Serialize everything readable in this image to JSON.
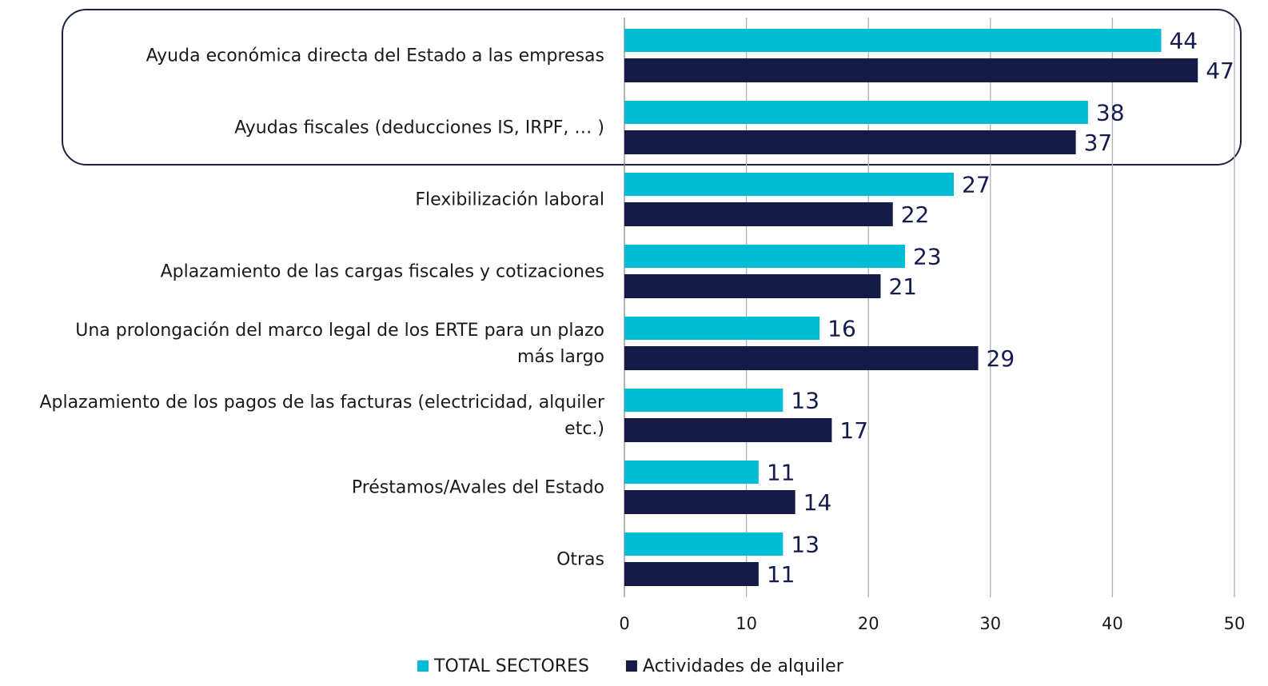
{
  "chart_data": {
    "type": "bar",
    "orientation": "horizontal",
    "categories": [
      "Ayuda económica directa del Estado a las empresas",
      "Ayudas fiscales (deducciones IS, IRPF, … )",
      "Flexibilización laboral",
      "Aplazamiento de las cargas fiscales y cotizaciones",
      "Una prolongación del marco legal de los ERTE para un plazo\nmás largo",
      "Aplazamiento de los pagos de las facturas (electricidad, alquiler\netc.)",
      "Préstamos/Avales del Estado",
      "Otras"
    ],
    "series": [
      {
        "name": "TOTAL SECTORES",
        "color": "#00bcd4",
        "values": [
          44,
          38,
          27,
          23,
          16,
          13,
          11,
          13
        ]
      },
      {
        "name": "Actividades de alquiler",
        "color": "#141b47",
        "values": [
          47,
          37,
          22,
          21,
          29,
          17,
          14,
          11
        ]
      }
    ],
    "xlim": [
      0,
      50
    ],
    "xticks": [
      0,
      10,
      20,
      30,
      40,
      50
    ],
    "grid": true,
    "legend": "bottom"
  }
}
